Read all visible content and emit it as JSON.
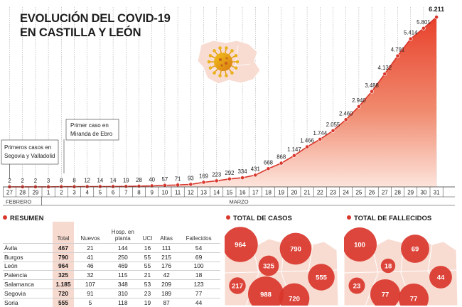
{
  "title": {
    "line1": "EVOLUCIÓN DEL COVID-19",
    "line2": "EN CASTILLA Y LEÓN"
  },
  "annotations": {
    "primeros": [
      "Primeros casos en",
      "Segovia y Valladolid"
    ],
    "primer": [
      "Primer caso en",
      "Miranda de Ebro"
    ]
  },
  "month_labels": {
    "feb": "FEBRERO",
    "mar": "MARZO"
  },
  "colors": {
    "accent": "#d9362b",
    "area_top": "#e8412c",
    "table_highlight": "#f6d9cf"
  },
  "chart_data": {
    "type": "area",
    "title": "EVOLUCIÓN DEL COVID-19 EN CASTILLA Y LEÓN",
    "x": [
      "27",
      "28",
      "29",
      "1",
      "2",
      "3",
      "4",
      "5",
      "6",
      "7",
      "8",
      "9",
      "10",
      "11",
      "12",
      "13",
      "14",
      "15",
      "16",
      "17",
      "18",
      "19",
      "20",
      "21",
      "22",
      "23",
      "24",
      "25",
      "26",
      "27",
      "28",
      "29",
      "30",
      "31"
    ],
    "values": [
      2,
      2,
      2,
      3,
      8,
      8,
      12,
      14,
      14,
      19,
      28,
      40,
      57,
      71,
      93,
      169,
      223,
      292,
      334,
      431,
      668,
      868,
      1147,
      1466,
      1744,
      2055,
      2460,
      2940,
      3488,
      4132,
      4791,
      5414,
      5801,
      6211
    ],
    "labels": [
      "2",
      "2",
      "2",
      "3",
      "8",
      "8",
      "12",
      "14",
      "14",
      "19",
      "28",
      "40",
      "57",
      "71",
      "93",
      "169",
      "223",
      "292",
      "334",
      "431",
      "668",
      "868",
      "1.147",
      "1.466",
      "1.744",
      "2.055",
      "2.460",
      "2.940",
      "3.488",
      "4.132",
      "4.791",
      "5.414",
      "5.801",
      "6.211"
    ],
    "months": [
      {
        "name": "FEBRERO",
        "from": 0,
        "to": 2
      },
      {
        "name": "MARZO",
        "from": 3,
        "to": 33
      }
    ],
    "ylim": [
      0,
      6211
    ],
    "grid": "vertical dashed"
  },
  "resumen": {
    "heading": "RESUMEN",
    "columns": [
      "",
      "Total",
      "Nuevos",
      "Hosp. en planta",
      "UCI",
      "Altas",
      "Fallecidos"
    ],
    "rows": [
      [
        "Ávila",
        "467",
        "21",
        "144",
        "16",
        "111",
        "54"
      ],
      [
        "Burgos",
        "790",
        "41",
        "250",
        "55",
        "215",
        "69"
      ],
      [
        "León",
        "964",
        "46",
        "469",
        "55",
        "176",
        "100"
      ],
      [
        "Palencia",
        "325",
        "32",
        "115",
        "21",
        "42",
        "18"
      ],
      [
        "Salamanca",
        "1.185",
        "107",
        "348",
        "53",
        "209",
        "123"
      ],
      [
        "Segovia",
        "720",
        "91",
        "310",
        "23",
        "189",
        "77"
      ],
      [
        "Soria",
        "555",
        "5",
        "118",
        "19",
        "87",
        "44"
      ]
    ]
  },
  "map_casos": {
    "heading": "TOTAL DE CASOS",
    "bubbles": [
      {
        "label": "964",
        "value": 964
      },
      {
        "label": "790",
        "value": 790
      },
      {
        "label": "325",
        "value": 325
      },
      {
        "label": "555",
        "value": 555
      },
      {
        "label": "217",
        "value": 217
      },
      {
        "label": "988",
        "value": 988
      },
      {
        "label": "720",
        "value": 720
      }
    ]
  },
  "map_fallecidos": {
    "heading": "TOTAL DE FALLECIDOS",
    "bubbles": [
      {
        "label": "100",
        "value": 100
      },
      {
        "label": "69",
        "value": 69
      },
      {
        "label": "18",
        "value": 18
      },
      {
        "label": "44",
        "value": 44
      },
      {
        "label": "23",
        "value": 23
      },
      {
        "label": "77",
        "value": 77
      },
      {
        "label": "77",
        "value": 77
      }
    ]
  }
}
